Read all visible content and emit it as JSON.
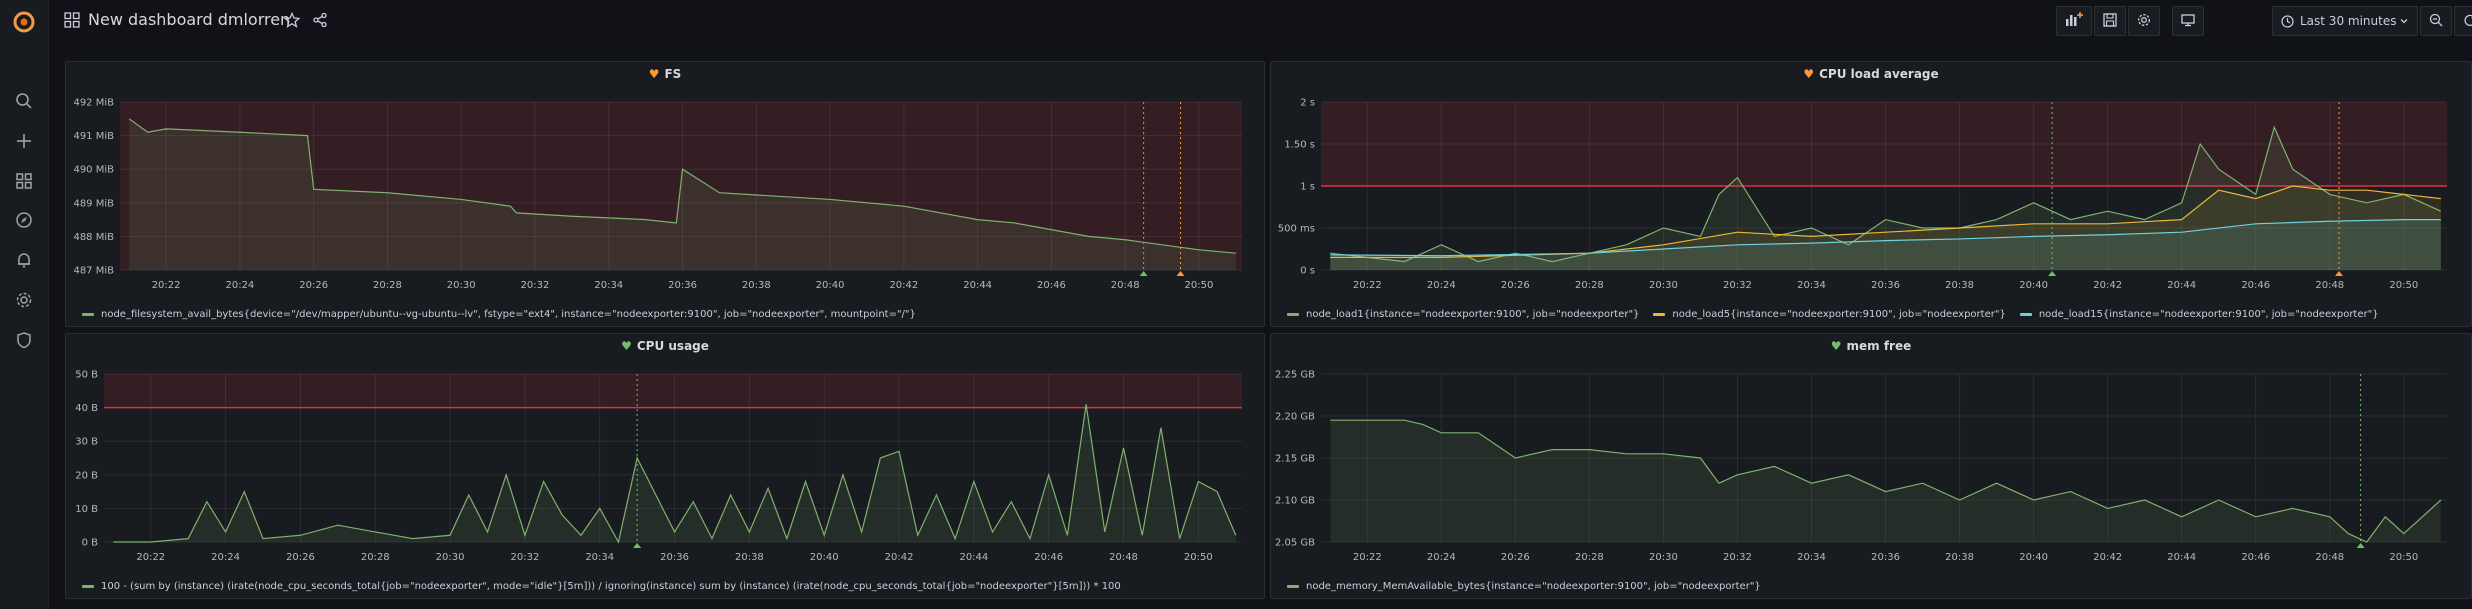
{
  "dashboard": {
    "title": "New dashboard dmlorren"
  },
  "toolbar": {
    "time_range": "Last 30 minutes"
  },
  "colors": {
    "accent": "#f2994a",
    "heart_ok": "#73bf69",
    "heart_alert": "#ff9830",
    "threshold": "#e02f44"
  },
  "panels": [
    {
      "id": "fs",
      "title": "FS",
      "state": "alerting",
      "legend": [
        {
          "label": "node_filesystem_avail_bytes{device=\"/dev/mapper/ubuntu--vg-ubuntu--lv\", fstype=\"ext4\", instance=\"nodeexporter:9100\", job=\"nodeexporter\", mountpoint=\"/\"}",
          "color": "#7eb26d"
        }
      ]
    },
    {
      "id": "cpu-load",
      "title": "CPU load average",
      "state": "alerting",
      "legend": [
        {
          "label": "node_load1{instance=\"nodeexporter:9100\", job=\"nodeexporter\"}",
          "color": "#7eb26d"
        },
        {
          "label": "node_load5{instance=\"nodeexporter:9100\", job=\"nodeexporter\"}",
          "color": "#eab839"
        },
        {
          "label": "node_load15{instance=\"nodeexporter:9100\", job=\"nodeexporter\"}",
          "color": "#6ed0e0"
        }
      ]
    },
    {
      "id": "cpu-usage",
      "title": "CPU usage",
      "state": "ok",
      "legend": [
        {
          "label": "100 - (sum by (instance) (irate(node_cpu_seconds_total{job=\"nodeexporter\", mode=\"idle\"}[5m])) / ignoring(instance) sum by (instance) (irate(node_cpu_seconds_total{job=\"nodeexporter\"}[5m])) * 100",
          "color": "#7eb26d"
        }
      ]
    },
    {
      "id": "mem-free",
      "title": "mem free",
      "state": "ok",
      "legend": [
        {
          "label": "node_memory_MemAvailable_bytes{instance=\"nodeexporter:9100\", job=\"nodeexporter\"}",
          "color": "#7eb26d"
        }
      ]
    }
  ],
  "chart_data": [
    {
      "type": "area",
      "panel": "FS",
      "x_ticks": [
        "20:22",
        "20:24",
        "20:26",
        "20:28",
        "20:30",
        "20:32",
        "20:34",
        "20:36",
        "20:38",
        "20:40",
        "20:42",
        "20:44",
        "20:46",
        "20:48",
        "20:50"
      ],
      "y_ticks": [
        "492 MiB",
        "491 MiB",
        "490 MiB",
        "489 MiB",
        "488 MiB",
        "487 MiB"
      ],
      "ylim": [
        487,
        492
      ],
      "threshold": 487,
      "series": [
        {
          "name": "node_filesystem_avail_bytes",
          "color": "#7eb26d",
          "x": [
            "20:21",
            "20:21:30",
            "20:22",
            "20:24",
            "20:25:50",
            "20:26",
            "20:28",
            "20:30",
            "20:31:20",
            "20:31:30",
            "20:33",
            "20:35",
            "20:35:50",
            "20:36",
            "20:37",
            "20:40",
            "20:42",
            "20:44",
            "20:45",
            "20:47",
            "20:48",
            "20:50",
            "20:51"
          ],
          "values": [
            491.5,
            491.1,
            491.2,
            491.1,
            491.0,
            489.4,
            489.3,
            489.1,
            488.9,
            488.7,
            488.6,
            488.5,
            488.4,
            490.0,
            489.3,
            489.1,
            488.9,
            488.5,
            488.4,
            488.0,
            487.9,
            487.6,
            487.5
          ]
        }
      ],
      "annotations": [
        "20:48:30",
        "20:49:30"
      ]
    },
    {
      "type": "area",
      "panel": "CPU load average",
      "x_ticks": [
        "20:22",
        "20:24",
        "20:26",
        "20:28",
        "20:30",
        "20:32",
        "20:34",
        "20:36",
        "20:38",
        "20:40",
        "20:42",
        "20:44",
        "20:46",
        "20:48",
        "20:50"
      ],
      "y_ticks": [
        "2 s",
        "1.50 s",
        "1 s",
        "500 ms",
        "0 s"
      ],
      "ylim": [
        0,
        2
      ],
      "threshold": 1,
      "series": [
        {
          "name": "node_load1",
          "color": "#7eb26d",
          "x": [
            "20:21",
            "20:23",
            "20:24",
            "20:25",
            "20:26",
            "20:27",
            "20:28",
            "20:29",
            "20:30",
            "20:31",
            "20:31:30",
            "20:32",
            "20:33",
            "20:34",
            "20:35",
            "20:36",
            "20:37",
            "20:38",
            "20:39",
            "20:40",
            "20:41",
            "20:42",
            "20:43",
            "20:44",
            "20:44:30",
            "20:45",
            "20:46",
            "20:46:30",
            "20:47",
            "20:48",
            "20:49",
            "20:50",
            "20:51"
          ],
          "values": [
            0.2,
            0.1,
            0.3,
            0.1,
            0.2,
            0.1,
            0.2,
            0.3,
            0.5,
            0.4,
            0.9,
            1.1,
            0.4,
            0.5,
            0.3,
            0.6,
            0.5,
            0.5,
            0.6,
            0.8,
            0.6,
            0.7,
            0.6,
            0.8,
            1.5,
            1.2,
            0.9,
            1.7,
            1.2,
            0.9,
            0.8,
            0.9,
            0.7
          ]
        },
        {
          "name": "node_load5",
          "color": "#eab839",
          "x": [
            "20:21",
            "20:24",
            "20:28",
            "20:30",
            "20:32",
            "20:34",
            "20:36",
            "20:38",
            "20:40",
            "20:42",
            "20:44",
            "20:45",
            "20:46",
            "20:47",
            "20:48",
            "20:49",
            "20:50",
            "20:51"
          ],
          "values": [
            0.15,
            0.15,
            0.2,
            0.3,
            0.45,
            0.4,
            0.45,
            0.5,
            0.55,
            0.55,
            0.6,
            0.95,
            0.85,
            1.0,
            0.95,
            0.95,
            0.9,
            0.85
          ]
        },
        {
          "name": "node_load15",
          "color": "#6ed0e0",
          "x": [
            "20:21",
            "20:24",
            "20:28",
            "20:30",
            "20:32",
            "20:34",
            "20:36",
            "20:38",
            "20:40",
            "20:42",
            "20:44",
            "20:46",
            "20:48",
            "20:50",
            "20:51"
          ],
          "values": [
            0.18,
            0.17,
            0.2,
            0.25,
            0.3,
            0.32,
            0.35,
            0.37,
            0.4,
            0.42,
            0.45,
            0.55,
            0.58,
            0.6,
            0.6
          ]
        }
      ],
      "annotations": [
        "20:40:30",
        "20:48:15"
      ]
    },
    {
      "type": "area",
      "panel": "CPU usage",
      "x_ticks": [
        "20:22",
        "20:24",
        "20:26",
        "20:28",
        "20:30",
        "20:32",
        "20:34",
        "20:36",
        "20:38",
        "20:40",
        "20:42",
        "20:44",
        "20:46",
        "20:48",
        "20:50"
      ],
      "y_ticks": [
        "50 B",
        "40 B",
        "30 B",
        "20 B",
        "10 B",
        "0 B"
      ],
      "ylim": [
        0,
        50
      ],
      "threshold": 40,
      "series": [
        {
          "name": "CPU usage",
          "color": "#7eb26d",
          "x": [
            "20:21",
            "20:22",
            "20:23",
            "20:23:30",
            "20:24",
            "20:24:30",
            "20:25",
            "20:26",
            "20:27",
            "20:28",
            "20:29",
            "20:30",
            "20:30:30",
            "20:31",
            "20:31:30",
            "20:32",
            "20:32:30",
            "20:33",
            "20:33:30",
            "20:34",
            "20:34:30",
            "20:35",
            "20:36",
            "20:36:30",
            "20:37",
            "20:37:30",
            "20:38",
            "20:38:30",
            "20:39",
            "20:39:30",
            "20:40",
            "20:40:30",
            "20:41",
            "20:41:30",
            "20:42",
            "20:42:30",
            "20:43",
            "20:43:30",
            "20:44",
            "20:44:30",
            "20:45",
            "20:45:30",
            "20:46",
            "20:46:30",
            "20:47",
            "20:47:30",
            "20:48",
            "20:48:30",
            "20:49",
            "20:49:30",
            "20:50",
            "20:50:30",
            "20:51"
          ],
          "values": [
            0,
            0,
            1,
            12,
            3,
            15,
            1,
            2,
            5,
            3,
            1,
            2,
            14,
            3,
            20,
            2,
            18,
            8,
            2,
            10,
            0,
            25,
            3,
            12,
            1,
            14,
            3,
            16,
            1,
            18,
            2,
            20,
            3,
            25,
            27,
            2,
            14,
            1,
            18,
            3,
            12,
            1,
            20,
            2,
            41,
            3,
            28,
            2,
            34,
            1,
            18,
            15,
            2
          ]
        }
      ],
      "annotations": [
        "20:35:00"
      ]
    },
    {
      "type": "area",
      "panel": "mem free",
      "x_ticks": [
        "20:22",
        "20:24",
        "20:26",
        "20:28",
        "20:30",
        "20:32",
        "20:34",
        "20:36",
        "20:38",
        "20:40",
        "20:42",
        "20:44",
        "20:46",
        "20:48",
        "20:50"
      ],
      "y_ticks": [
        "2.25 GB",
        "2.20 GB",
        "2.15 GB",
        "2.10 GB",
        "2.05 GB"
      ],
      "ylim": [
        2.05,
        2.25
      ],
      "series": [
        {
          "name": "node_memory_MemAvailable_bytes",
          "color": "#7eb26d",
          "x": [
            "20:21",
            "20:23",
            "20:23:30",
            "20:24",
            "20:25",
            "20:25:30",
            "20:26",
            "20:27",
            "20:28",
            "20:29",
            "20:30",
            "20:31",
            "20:31:30",
            "20:32",
            "20:33",
            "20:34",
            "20:35",
            "20:36",
            "20:37",
            "20:38",
            "20:39",
            "20:40",
            "20:41",
            "20:42",
            "20:43",
            "20:44",
            "20:45",
            "20:46",
            "20:47",
            "20:48",
            "20:48:30",
            "20:49",
            "20:49:30",
            "20:50",
            "20:51"
          ],
          "values": [
            2.195,
            2.195,
            2.19,
            2.18,
            2.18,
            2.165,
            2.15,
            2.16,
            2.16,
            2.155,
            2.155,
            2.15,
            2.12,
            2.13,
            2.14,
            2.12,
            2.13,
            2.11,
            2.12,
            2.1,
            2.12,
            2.1,
            2.11,
            2.09,
            2.1,
            2.08,
            2.1,
            2.08,
            2.09,
            2.08,
            2.06,
            2.05,
            2.08,
            2.06,
            2.1
          ]
        }
      ],
      "annotations": [
        "20:48:50"
      ]
    }
  ]
}
